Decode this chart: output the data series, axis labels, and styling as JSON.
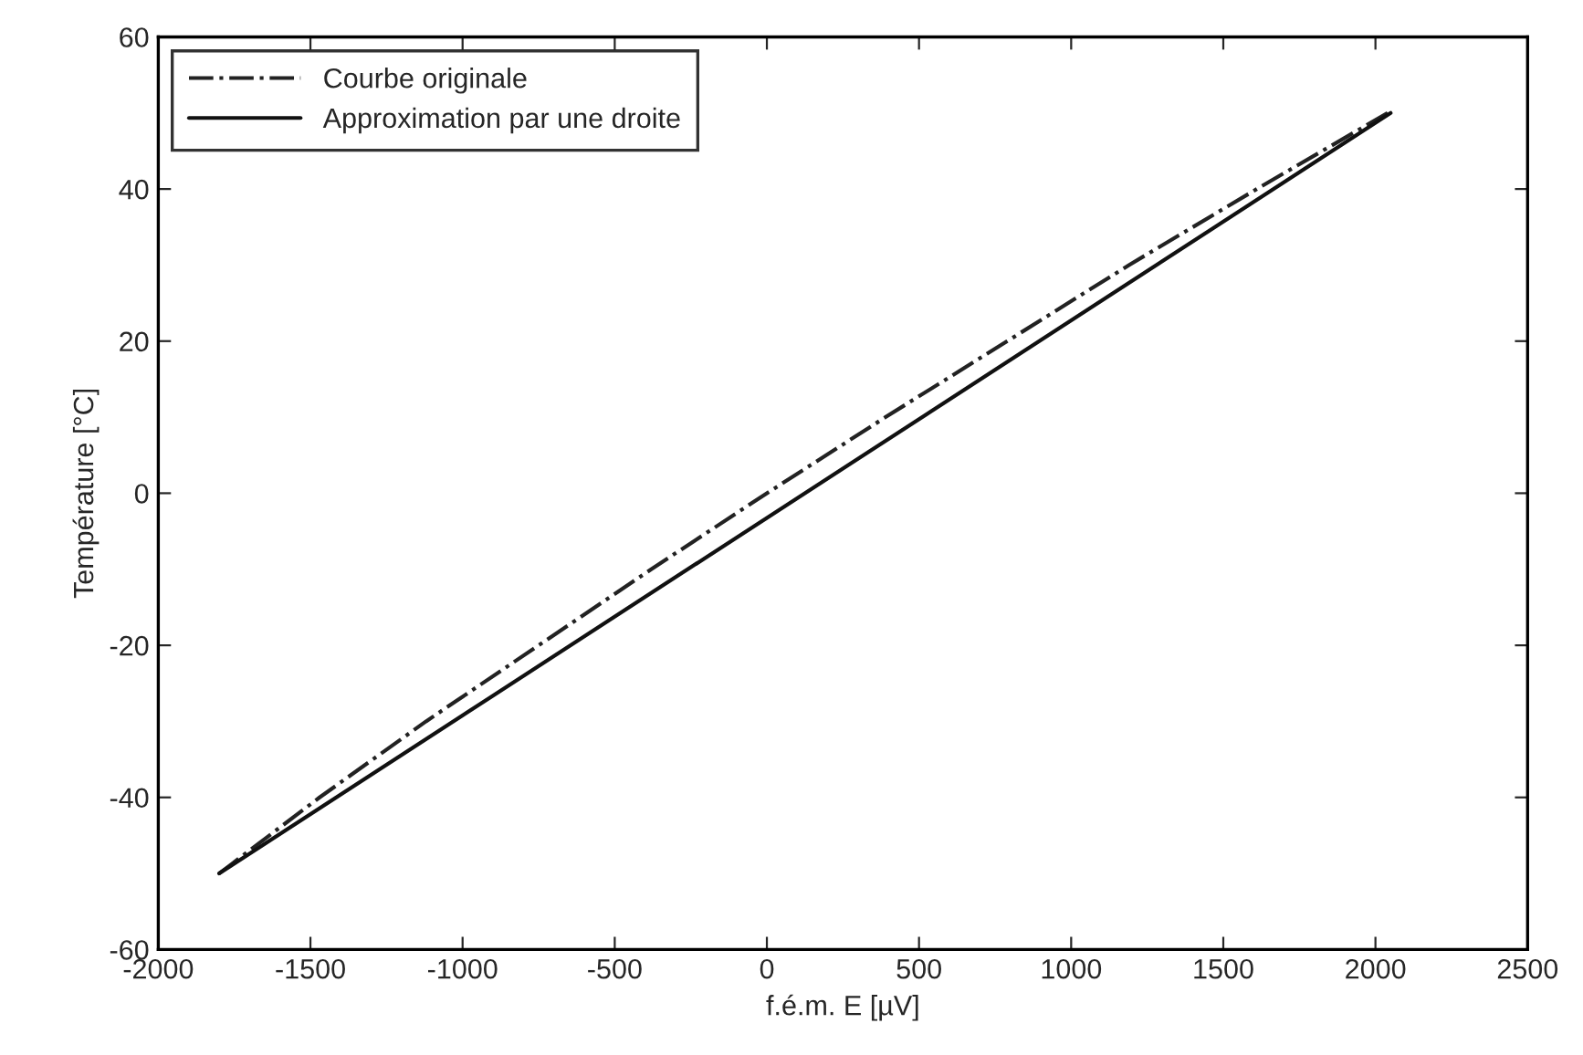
{
  "chart_data": {
    "type": "line",
    "xlabel": "f.é.m. E [µV]",
    "ylabel": "Température [°C]",
    "xlim": [
      -2000,
      2500
    ],
    "xticks": [
      -2000,
      -1500,
      -1000,
      -500,
      0,
      500,
      1000,
      1500,
      2000,
      2500
    ],
    "ylim": [
      -60,
      60
    ],
    "yticks": [
      -60,
      -40,
      -20,
      0,
      20,
      40,
      60
    ],
    "grid": false,
    "legend": "top left",
    "series": [
      {
        "name": "Courbe originale",
        "color": "#222222",
        "line_style": "dashed",
        "x": [
          -1800,
          -1470,
          -1120,
          -750,
          -380,
          0,
          390,
          790,
          1190,
          1610,
          2040
        ],
        "values": [
          -50,
          -40,
          -30,
          -20,
          -10,
          0,
          10,
          20,
          30,
          40,
          50
        ]
      },
      {
        "name": "Approximation par une droite",
        "color": "#111111",
        "line_style": "solid",
        "x": [
          -1800,
          2050
        ],
        "values": [
          -50,
          50
        ]
      }
    ]
  }
}
